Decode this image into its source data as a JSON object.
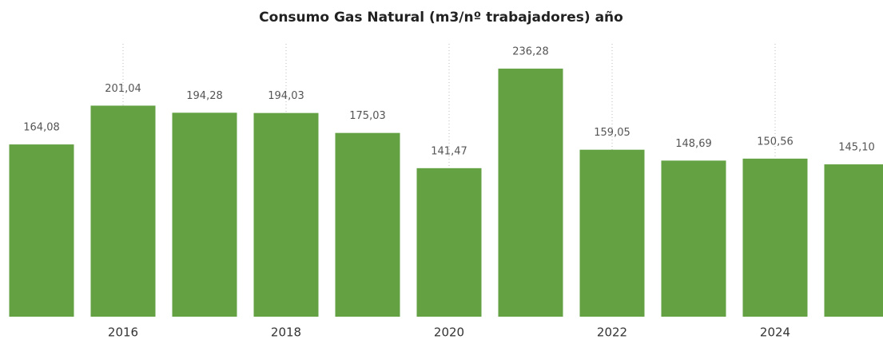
{
  "chart_data": {
    "type": "bar",
    "title": "Consumo Gas Natural (m3/nº trabajadores) año",
    "categories": [
      null,
      "2016",
      null,
      "2018",
      null,
      "2020",
      null,
      "2022",
      null,
      "2024",
      null
    ],
    "values": [
      164.08,
      201.04,
      194.28,
      194.03,
      175.03,
      141.47,
      236.28,
      159.05,
      148.69,
      150.56,
      145.1
    ],
    "value_labels": [
      "164,08",
      "201,04",
      "194,28",
      "194,03",
      "175,03",
      "141,47",
      "236,28",
      "159,05",
      "148,69",
      "150,56",
      "145,10"
    ],
    "color": "#63a143",
    "ylim": [
      0,
      250
    ],
    "grid": true
  }
}
